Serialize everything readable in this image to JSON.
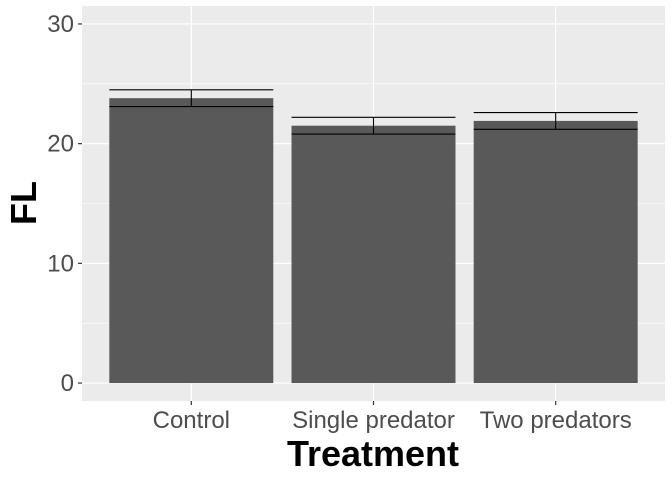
{
  "chart_data": {
    "type": "bar",
    "title": "",
    "xlabel": "Treatment",
    "ylabel": "FL",
    "categories": [
      "Control",
      "Single predator",
      "Two predators"
    ],
    "values": [
      23.8,
      21.5,
      21.9
    ],
    "error_bars": [
      {
        "low": 23.1,
        "high": 24.5
      },
      {
        "low": 20.8,
        "high": 22.2
      },
      {
        "low": 21.2,
        "high": 22.6
      }
    ],
    "ylim": [
      -1.5,
      31.5
    ],
    "yticks": [
      0,
      10,
      20,
      30
    ],
    "grid": true,
    "legend": "none",
    "colors": {
      "panel_bg": "#ebebeb",
      "grid_major": "#ffffff",
      "bar_fill": "#595959",
      "error_bar": "#000000"
    }
  }
}
